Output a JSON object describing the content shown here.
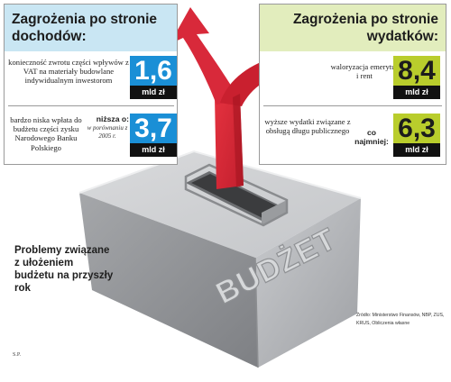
{
  "income": {
    "title": "Zagrożenia po stronie dochodów:",
    "items": [
      {
        "text": "konieczność zwrotu części wpływów z VAT na materiały budowlane indywidualnym inwestorom",
        "value": "1,6",
        "unit": "mld zł"
      },
      {
        "text": "bardzo niska wpłata do budżetu części zysku Narodowego Banku Polskiego",
        "qualifier": "niższa o:",
        "qualifier_note": "w porównaniu z 2005 r.",
        "value": "3,7",
        "unit": "mld zł"
      }
    ]
  },
  "expenses": {
    "title": "Zagrożenia po stronie wydatków:",
    "items": [
      {
        "text": "waloryzacja emerytur i rent",
        "value": "8,4",
        "unit": "mld zł"
      },
      {
        "text": "wyższe wydatki związane z obsługą długu publicznego",
        "qualifier": "co najmniej:",
        "value": "6,3",
        "unit": "mld zł"
      }
    ]
  },
  "ballot_box": {
    "label": "BUDŻET"
  },
  "caption": "Problemy związane z ułożeniem budżetu na przyszły rok",
  "source": "Źródło: Ministerstwo Finansów, NBP, ZUS, KRUS, Obliczenia własne",
  "author": "S.P.",
  "colors": {
    "income_head": "#c9e6f3",
    "expense_head": "#e2edbd",
    "income_value": "#1a8fd6",
    "expense_value": "#b9cd2c",
    "arrow": "#d8293a",
    "box": "#b8babd"
  }
}
